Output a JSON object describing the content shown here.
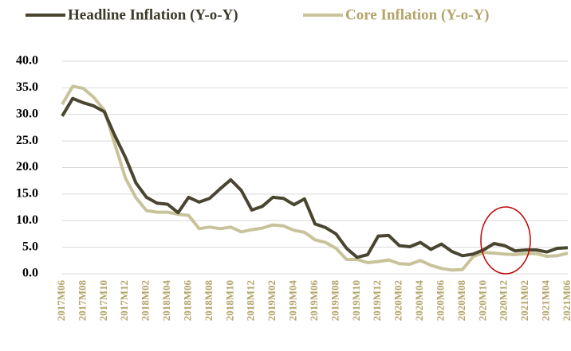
{
  "chart_data": {
    "type": "line",
    "categories": [
      "2017M06",
      null,
      "2017M08",
      null,
      "2017M10",
      null,
      "2017M12",
      null,
      "2018M02",
      null,
      "2018M04",
      null,
      "2018M06",
      null,
      "2018M08",
      null,
      "2018M10",
      null,
      "2018M12",
      null,
      "2019M02",
      null,
      "2019M04",
      null,
      "2019M06",
      null,
      "2019M08",
      null,
      "2019M10",
      null,
      "2019M12",
      null,
      "2020M02",
      null,
      "2020M04",
      null,
      "2020M06",
      null,
      "2020M08",
      null,
      "2020M10",
      null,
      "2020M12",
      null,
      "2021M02",
      null,
      "2021M04",
      null,
      "2021M06"
    ],
    "series": [
      {
        "name": "Headline Inflation (Y-o-Y)",
        "color": "#4a4530",
        "values": [
          29.7,
          33.0,
          32.2,
          31.6,
          30.5,
          26.0,
          21.9,
          17.1,
          14.4,
          13.3,
          13.1,
          11.5,
          14.4,
          13.5,
          14.2,
          16.0,
          17.7,
          15.7,
          12.0,
          12.7,
          14.4,
          14.2,
          13.0,
          14.1,
          9.4,
          8.7,
          7.5,
          4.8,
          3.1,
          3.6,
          7.1,
          7.2,
          5.3,
          5.1,
          5.9,
          4.6,
          5.6,
          4.2,
          3.4,
          3.7,
          4.5,
          5.7,
          5.3,
          4.3,
          4.5,
          4.5,
          4.1,
          4.8,
          4.9
        ]
      },
      {
        "name": "Core Inflation (Y-o-Y)",
        "color": "#c8c39a",
        "values": [
          31.9,
          35.3,
          34.9,
          33.2,
          30.8,
          24.4,
          18.0,
          14.3,
          11.9,
          11.6,
          11.6,
          11.2,
          11.0,
          8.5,
          8.8,
          8.5,
          8.8,
          7.9,
          8.3,
          8.6,
          9.2,
          9.0,
          8.2,
          7.8,
          6.4,
          5.9,
          4.8,
          2.7,
          2.7,
          2.1,
          2.3,
          2.6,
          1.9,
          1.8,
          2.5,
          1.6,
          1.0,
          0.7,
          0.8,
          3.2,
          4.0,
          3.9,
          3.7,
          3.6,
          3.8,
          3.8,
          3.3,
          3.4,
          3.9
        ]
      }
    ],
    "ylim": [
      0,
      40
    ],
    "yticks": [
      {
        "value": 0,
        "label": "0.0"
      },
      {
        "value": 5,
        "label": "5.0"
      },
      {
        "value": 10,
        "label": "10.0"
      },
      {
        "value": 15,
        "label": "15.0"
      },
      {
        "value": 20,
        "label": "20.0"
      },
      {
        "value": 25,
        "label": "25.0"
      },
      {
        "value": 30,
        "label": "30.0"
      },
      {
        "value": 35,
        "label": "35.0"
      },
      {
        "value": 40,
        "label": "40.0"
      }
    ],
    "grid": true
  }
}
